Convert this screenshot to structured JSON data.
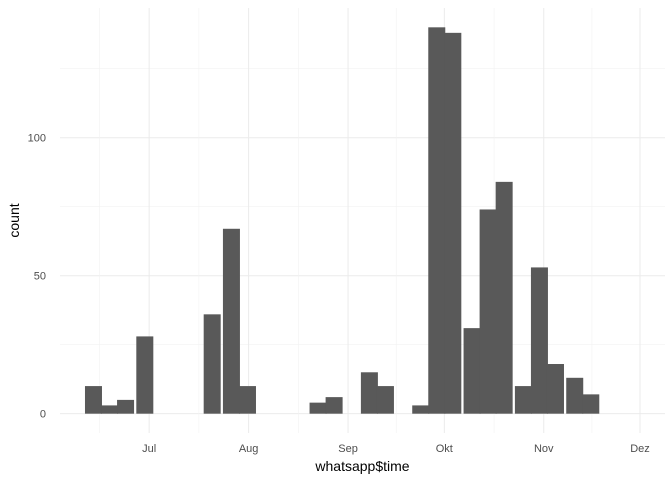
{
  "chart_data": {
    "type": "bar",
    "xlabel": "whatsapp$time",
    "ylabel": "count",
    "grid": true,
    "ylim": [
      0,
      140
    ],
    "y_ticks": [
      0,
      50,
      100
    ],
    "x_ticks": [
      {
        "label": "Jul",
        "date": "2015-07-01"
      },
      {
        "label": "Aug",
        "date": "2015-08-01"
      },
      {
        "label": "Sep",
        "date": "2015-09-01"
      },
      {
        "label": "Okt",
        "date": "2015-10-01"
      },
      {
        "label": "Nov",
        "date": "2015-11-01"
      },
      {
        "label": "Dez",
        "date": "2015-12-01"
      }
    ],
    "bin_width_days": 5.3,
    "bins": [
      {
        "start": "2015-06-11",
        "count": 10
      },
      {
        "start": "2015-06-16",
        "count": 3
      },
      {
        "start": "2015-06-21",
        "count": 5
      },
      {
        "start": "2015-06-27",
        "count": 28
      },
      {
        "start": "2015-07-02",
        "count": 0
      },
      {
        "start": "2015-07-08",
        "count": 0
      },
      {
        "start": "2015-07-13",
        "count": 0
      },
      {
        "start": "2015-07-18",
        "count": 36
      },
      {
        "start": "2015-07-24",
        "count": 67
      },
      {
        "start": "2015-07-29",
        "count": 10
      },
      {
        "start": "2015-08-03",
        "count": 0
      },
      {
        "start": "2015-08-09",
        "count": 0
      },
      {
        "start": "2015-08-14",
        "count": 0
      },
      {
        "start": "2015-08-20",
        "count": 4
      },
      {
        "start": "2015-08-25",
        "count": 6
      },
      {
        "start": "2015-08-30",
        "count": 0
      },
      {
        "start": "2015-09-05",
        "count": 15
      },
      {
        "start": "2015-09-10",
        "count": 10
      },
      {
        "start": "2015-09-15",
        "count": 0
      },
      {
        "start": "2015-09-21",
        "count": 3
      },
      {
        "start": "2015-09-26",
        "count": 140
      },
      {
        "start": "2015-10-01",
        "count": 138
      },
      {
        "start": "2015-10-07",
        "count": 31
      },
      {
        "start": "2015-10-12",
        "count": 74
      },
      {
        "start": "2015-10-17",
        "count": 84
      },
      {
        "start": "2015-10-23",
        "count": 10
      },
      {
        "start": "2015-10-28",
        "count": 53
      },
      {
        "start": "2015-11-02",
        "count": 18
      },
      {
        "start": "2015-11-08",
        "count": 13
      },
      {
        "start": "2015-11-13",
        "count": 7
      }
    ],
    "bar_color": "#595959",
    "background_color": "#ffffff",
    "grid_color": "#ebebeb"
  }
}
